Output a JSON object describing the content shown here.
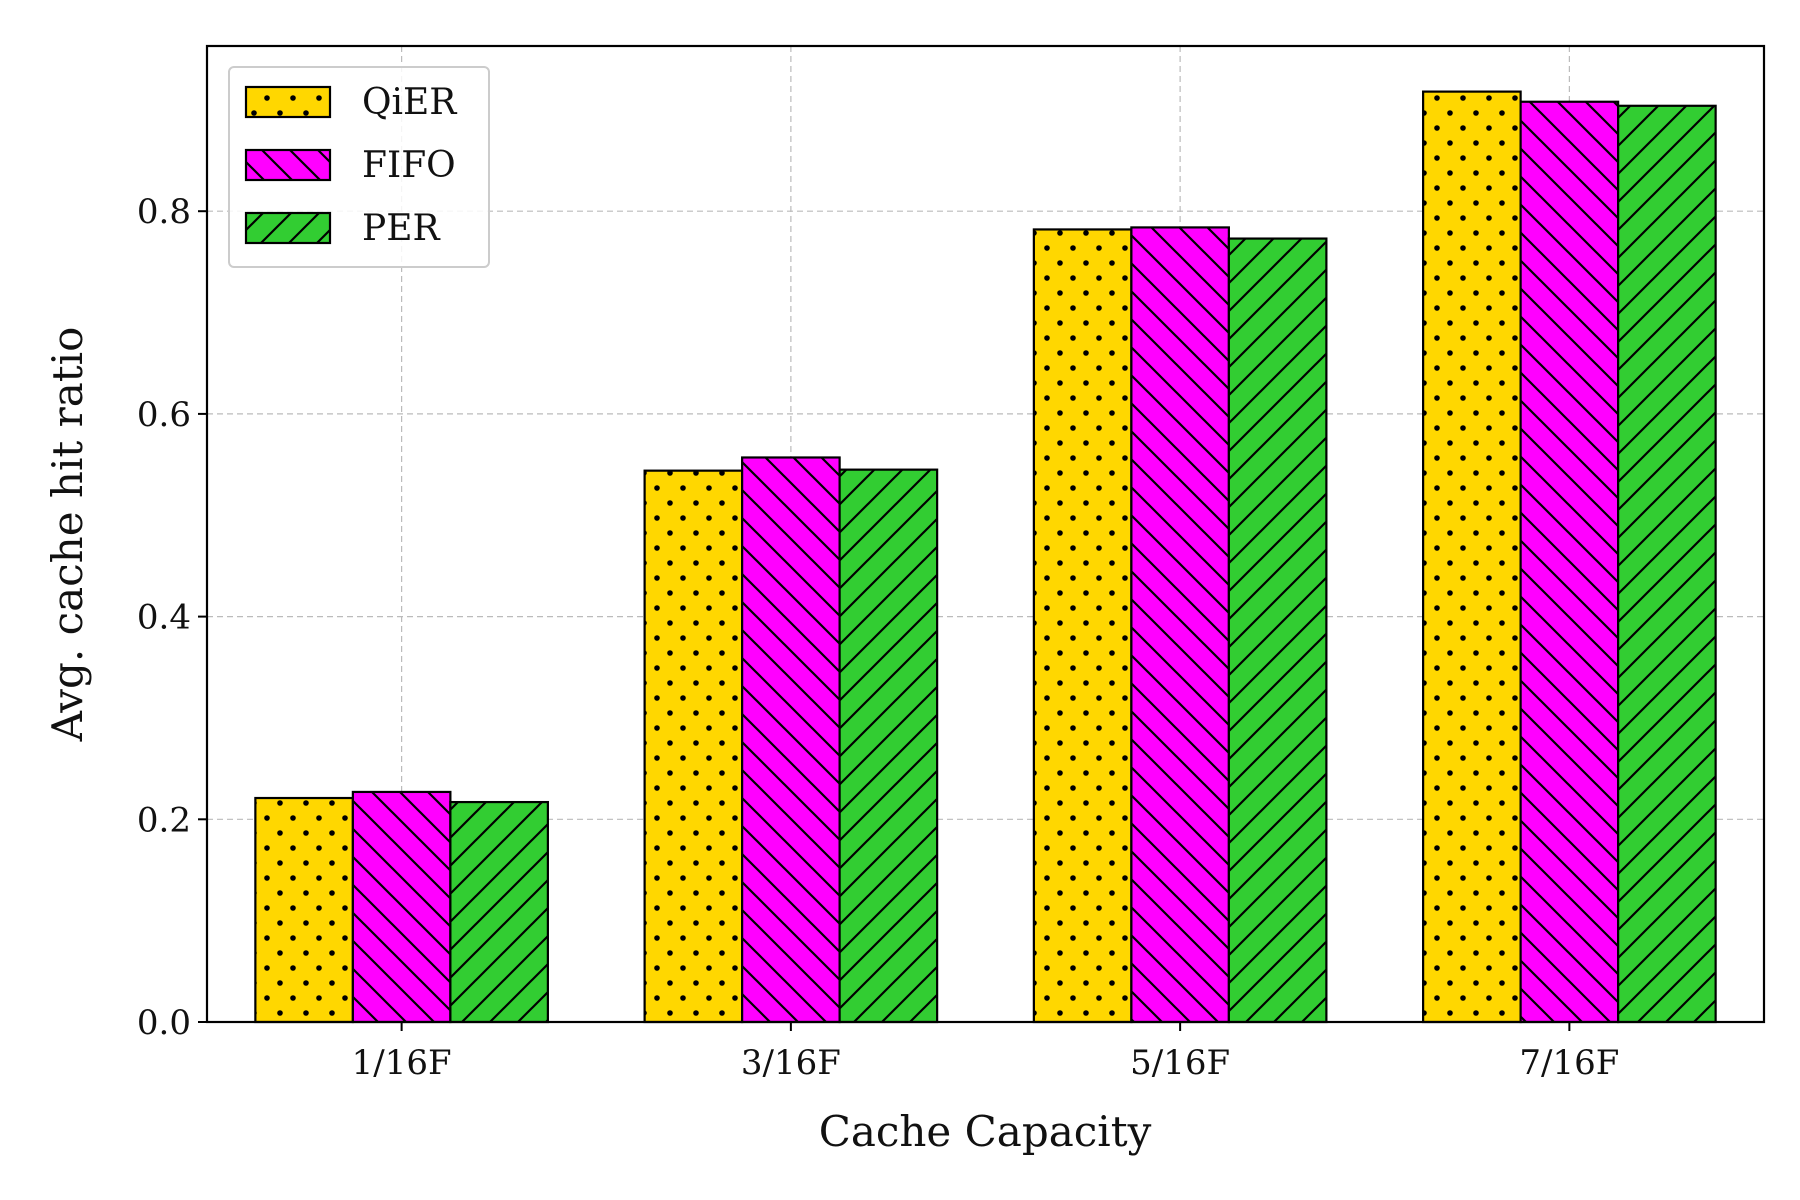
{
  "chart_data": {
    "type": "bar",
    "xlabel": "Cache Capacity",
    "ylabel": "Avg. cache hit ratio",
    "categories": [
      "1/16F",
      "3/16F",
      "5/16F",
      "7/16F"
    ],
    "ylim": [
      0,
      0.963
    ],
    "yticks": [
      0.0,
      0.2,
      0.4,
      0.6,
      0.8
    ],
    "ytick_labels": [
      "0.0",
      "0.2",
      "0.4",
      "0.6",
      "0.8"
    ],
    "grid": true,
    "legend_position": "top-left",
    "series": [
      {
        "name": "QiER",
        "color": "#FFD700",
        "hatch": "dots",
        "values": [
          0.221,
          0.544,
          0.782,
          0.918
        ]
      },
      {
        "name": "FIFO",
        "color": "#FF00FF",
        "hatch": "backslash",
        "values": [
          0.227,
          0.557,
          0.784,
          0.908
        ]
      },
      {
        "name": "PER",
        "color": "#32CD32",
        "hatch": "slash",
        "values": [
          0.217,
          0.545,
          0.773,
          0.904
        ]
      }
    ]
  }
}
